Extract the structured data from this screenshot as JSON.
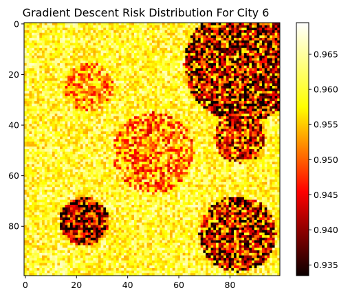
{
  "chart_data": {
    "type": "heatmap",
    "title": "Gradient Descent Risk Distribution For City 6",
    "xlabel": "",
    "ylabel": "",
    "grid_size": [
      100,
      100
    ],
    "xlim": [
      -0.5,
      99.5
    ],
    "ylim": [
      99.5,
      -0.5
    ],
    "x_ticks": [
      0,
      20,
      40,
      60,
      80
    ],
    "y_ticks": [
      0,
      20,
      40,
      60,
      80
    ],
    "colormap": "hot",
    "color_range": [
      0.9335,
      0.9695
    ],
    "colorbar_ticks": [
      0.935,
      0.94,
      0.945,
      0.95,
      0.955,
      0.96,
      0.965
    ],
    "colorbar_tick_labels": [
      "0.935",
      "0.940",
      "0.945",
      "0.950",
      "0.955",
      "0.960",
      "0.965"
    ],
    "background_level": 0.9615,
    "background_noise": 0.006,
    "regions": [
      {
        "cx": 85,
        "cy": 16,
        "r": 23,
        "mean": 0.9445,
        "spread": 0.018
      },
      {
        "cx": 84,
        "cy": 45,
        "r": 10,
        "mean": 0.948,
        "spread": 0.015
      },
      {
        "cx": 23,
        "cy": 78,
        "r": 9.5,
        "mean": 0.942,
        "spread": 0.016
      },
      {
        "cx": 83,
        "cy": 83,
        "r": 15,
        "mean": 0.9455,
        "spread": 0.017
      },
      {
        "cx": 50,
        "cy": 51,
        "r": 16,
        "mean": 0.9545,
        "spread": 0.011
      },
      {
        "cx": 25,
        "cy": 25,
        "r": 9.5,
        "mean": 0.9555,
        "spread": 0.01
      }
    ]
  }
}
